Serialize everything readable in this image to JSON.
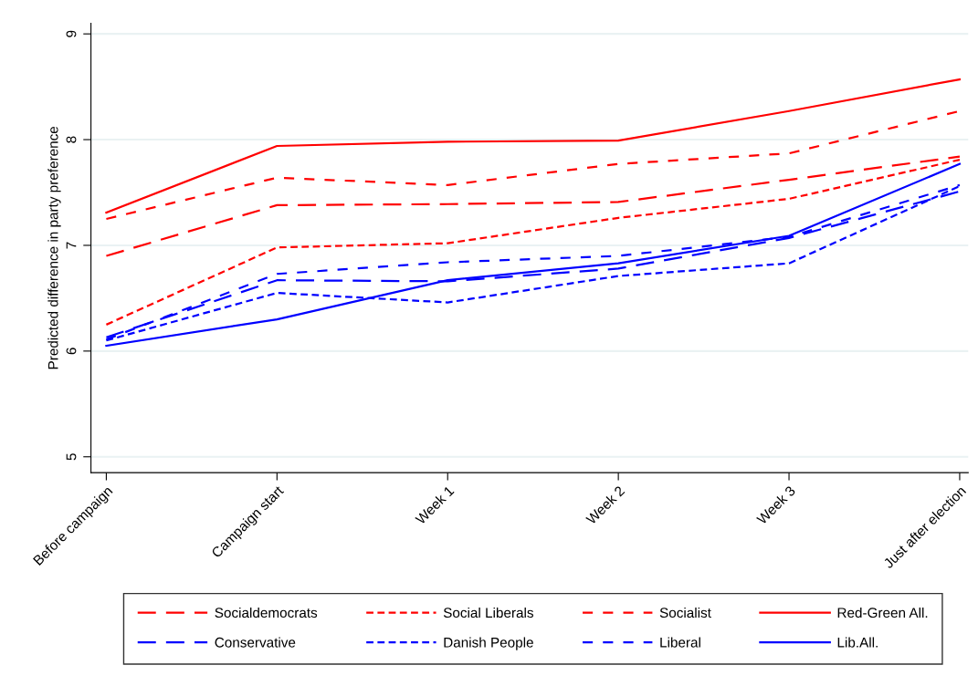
{
  "chart_data": {
    "type": "line",
    "ylabel": "Predicted difference in party preference",
    "categories": [
      "Before campaign",
      "Campaign start",
      "Week 1",
      "Week 2",
      "Week 3",
      "Just after election"
    ],
    "ylim": [
      4.85,
      9.1
    ],
    "yticks": [
      5,
      6,
      7,
      8,
      9
    ],
    "grid": "y",
    "legend": "bottom",
    "marker": "none",
    "series": [
      {
        "name": "Socialdemocrats",
        "color": "#ff0000",
        "line_style": "longdash",
        "values": [
          6.9,
          7.38,
          7.39,
          7.41,
          7.62,
          7.84
        ]
      },
      {
        "name": "Social Liberals",
        "color": "#ff0000",
        "line_style": "shortdash",
        "values": [
          6.25,
          6.98,
          7.02,
          7.26,
          7.44,
          7.81
        ]
      },
      {
        "name": "Socialist",
        "color": "#ff0000",
        "line_style": "dashed",
        "values": [
          7.25,
          7.64,
          7.57,
          7.77,
          7.87,
          8.27
        ]
      },
      {
        "name": "Red-Green All.",
        "color": "#ff0000",
        "line_style": "solid",
        "values": [
          7.31,
          7.94,
          7.98,
          7.99,
          8.27,
          8.57
        ]
      },
      {
        "name": "Conservative",
        "color": "#0000ff",
        "line_style": "longdash",
        "values": [
          6.13,
          6.67,
          6.66,
          6.78,
          7.07,
          7.51
        ]
      },
      {
        "name": "Danish People",
        "color": "#0000ff",
        "line_style": "shortdash",
        "values": [
          6.1,
          6.55,
          6.46,
          6.71,
          6.83,
          7.56
        ]
      },
      {
        "name": "Liberal",
        "color": "#0000ff",
        "line_style": "dashed",
        "values": [
          6.11,
          6.73,
          6.84,
          6.9,
          7.08,
          7.57
        ]
      },
      {
        "name": "Lib.All.",
        "color": "#0000ff",
        "line_style": "solid",
        "values": [
          6.05,
          6.3,
          6.67,
          6.83,
          7.09,
          7.77
        ]
      }
    ]
  }
}
